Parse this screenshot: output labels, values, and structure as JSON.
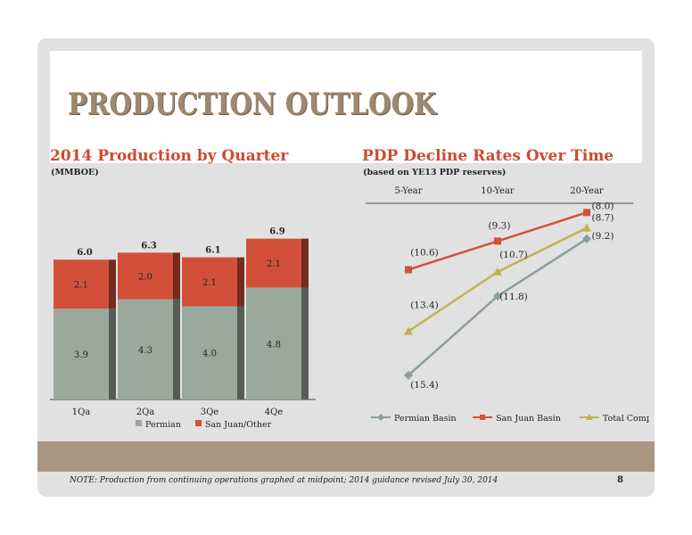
{
  "slide": {
    "title": "PRODUCTION OUTLOOK",
    "footnote": "NOTE: Production from continuing operations graphed at midpoint; 2014 guidance revised July 30, 2014",
    "page_number": "8",
    "colors": {
      "title": "#9e8870",
      "heading": "#cc4a2f",
      "band": "#a89682",
      "background": "#e1e1e1"
    }
  },
  "left_chart": {
    "heading": "2014 Production by Quarter",
    "unit_note": "(MMBOE)"
  },
  "right_chart": {
    "heading": "PDP Decline Rates Over Time",
    "unit_note": "(based on YE13 PDP reserves)"
  },
  "chart_data": [
    {
      "type": "bar",
      "stacked": true,
      "title": "2014 Production by Quarter",
      "ylabel": "(MMBOE)",
      "categories": [
        "1Qa",
        "2Qa",
        "3Qe",
        "4Qe"
      ],
      "series": [
        {
          "name": "Permian",
          "values": [
            3.9,
            4.3,
            4.0,
            4.8
          ],
          "labels": [
            "3.9",
            "4.3",
            "4.0",
            "4.8"
          ],
          "color": "#9ba99c"
        },
        {
          "name": "San Juan/Other",
          "values": [
            2.1,
            2.0,
            2.1,
            2.1
          ],
          "labels": [
            "2.1",
            "2.0",
            "2.1",
            "2.1"
          ],
          "color": "#d2503a"
        }
      ],
      "totals": [
        "6.0",
        "6.3",
        "6.1",
        "6.9"
      ],
      "ylim": [
        0,
        7.5
      ],
      "grid": false,
      "legend": "bottom"
    },
    {
      "type": "line",
      "title": "PDP Decline Rates Over Time",
      "categories": [
        "5-Year",
        "10-Year",
        "20-Year"
      ],
      "series": [
        {
          "name": "Permian Basin",
          "values": [
            -15.4,
            -11.8,
            -9.2
          ],
          "labels": [
            "(15.4)",
            "(11.8)",
            "(9.2)"
          ],
          "color": "#8a9e9c",
          "marker": "diamond"
        },
        {
          "name": "San Juan Basin",
          "values": [
            -10.6,
            -9.3,
            -8.0
          ],
          "labels": [
            "(10.6)",
            "(9.3)",
            "(8.0)"
          ],
          "color": "#d2503a",
          "marker": "square"
        },
        {
          "name": "Total Company",
          "values": [
            -13.4,
            -10.7,
            -8.7
          ],
          "labels": [
            "(13.4)",
            "(10.7)",
            "(8.7)"
          ],
          "color": "#bdb44e",
          "marker": "triangle"
        }
      ],
      "ylim": [
        -16.5,
        -7.5
      ],
      "x_axis_position": "top",
      "grid": false,
      "legend": "bottom"
    }
  ]
}
